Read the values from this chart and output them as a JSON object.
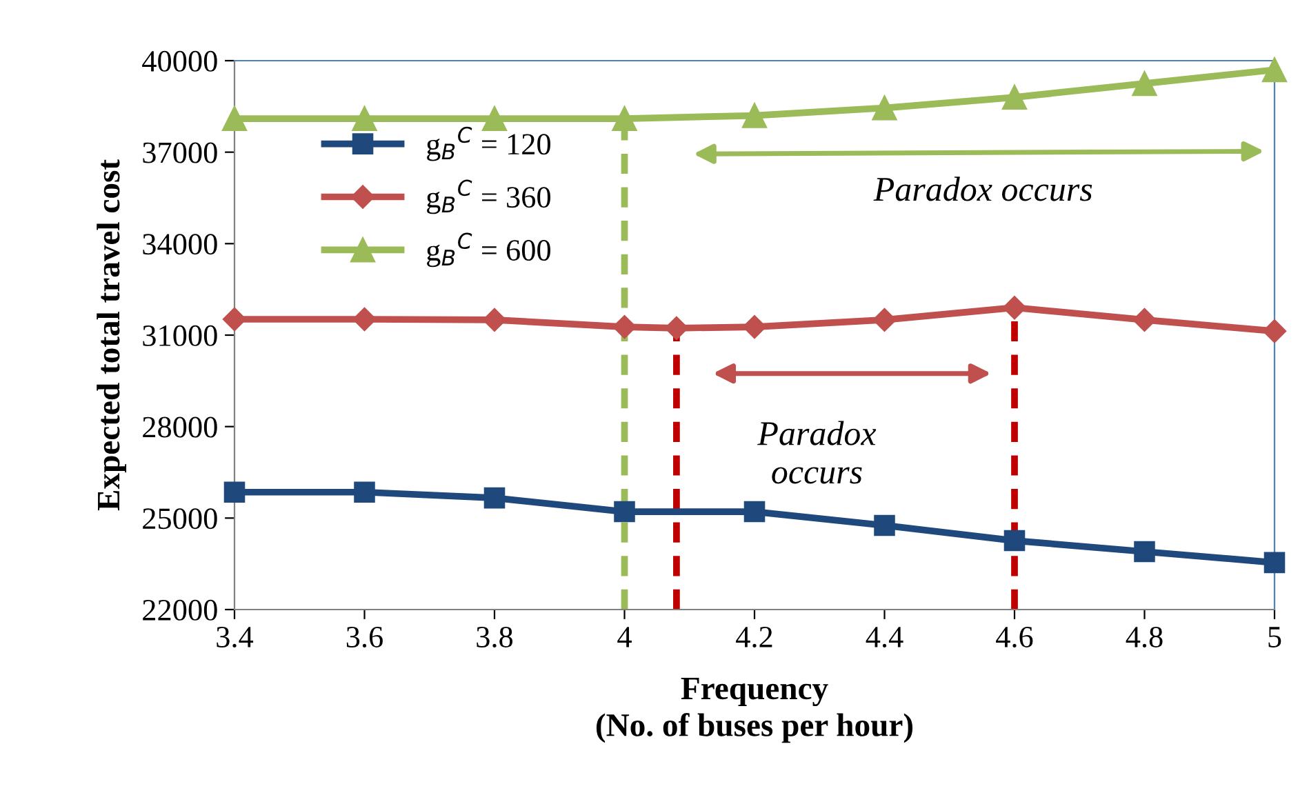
{
  "chart_data": {
    "type": "line",
    "xlabel": "Frequency\n(No. of buses per hour)",
    "ylabel": "Expected total travel cost",
    "xlim": [
      3.4,
      5
    ],
    "xticks": [
      3.4,
      3.6,
      3.8,
      4,
      4.2,
      4.4,
      4.6,
      4.8,
      5
    ],
    "ylim": [
      22000,
      40000
    ],
    "yticks": [
      22000,
      25000,
      28000,
      31000,
      34000,
      37000,
      40000
    ],
    "grid": false,
    "legend": "top left",
    "series": [
      {
        "name": "g$_{B}$$^{C}$ = 120",
        "color": "#1f497d",
        "marker": "square",
        "x": [
          3.4,
          3.6,
          3.8,
          4,
          4.2,
          4.4,
          4.6,
          4.8,
          5
        ],
        "values": [
          25850,
          25850,
          25660,
          25210,
          25210,
          24760,
          24260,
          23900,
          23540
        ]
      },
      {
        "name": "g$_{B}$$^{C}$ = 360",
        "color": "#c0504d",
        "marker": "diamond",
        "x": [
          3.4,
          3.6,
          3.8,
          4,
          4.08,
          4.2,
          4.4,
          4.6,
          4.8,
          5
        ],
        "values": [
          31520,
          31520,
          31500,
          31270,
          31230,
          31270,
          31500,
          31900,
          31500,
          31130
        ]
      },
      {
        "name": "g$_{B}$$^{C}$ = 600",
        "color": "#9bbb59",
        "marker": "triangle",
        "x": [
          3.4,
          3.6,
          3.8,
          4,
          4.2,
          4.4,
          4.6,
          4.8,
          5
        ],
        "values": [
          38100,
          38100,
          38100,
          38100,
          38200,
          38450,
          38800,
          39250,
          39700
        ]
      }
    ],
    "ref_lines": [
      {
        "axis": "x",
        "value": 4,
        "color": "#9bbb59",
        "line_style": "dashed"
      },
      {
        "axis": "x",
        "value": 4.08,
        "color": "#c00000",
        "line_style": "dashed"
      },
      {
        "axis": "x",
        "value": 4.6,
        "color": "#c00000",
        "line_style": "dashed"
      }
    ],
    "annotations": [
      "Paradox occurs",
      "Paradox\noccurs"
    ]
  }
}
